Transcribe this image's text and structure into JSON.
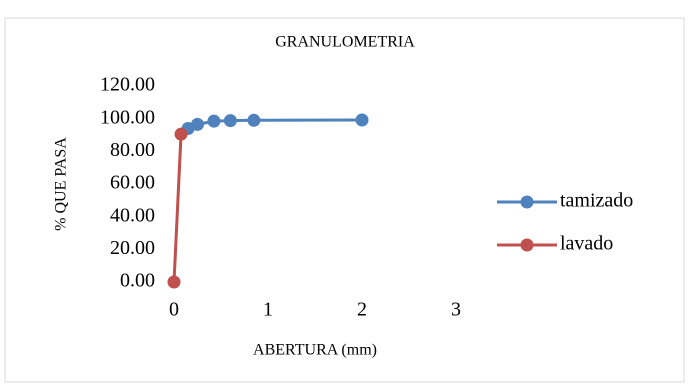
{
  "chart_data": {
    "type": "scatter-line",
    "title": "GRANULOMETRIA",
    "x_label": "ABERTURA (mm)",
    "y_label": "% QUE PASA",
    "xlim": [
      0,
      3
    ],
    "xticks": [
      0,
      1,
      2,
      3
    ],
    "ylim": [
      0,
      120
    ],
    "yticks": [
      {
        "value": 0,
        "label": "0.00"
      },
      {
        "value": 20,
        "label": "20.00"
      },
      {
        "value": 40,
        "label": "40.00"
      },
      {
        "value": 60,
        "label": "60.00"
      },
      {
        "value": 80,
        "label": "80.00"
      },
      {
        "value": 100,
        "label": "100.00"
      },
      {
        "value": 120,
        "label": "120.00"
      }
    ],
    "grid": false,
    "legend": "right",
    "series": [
      {
        "name": "tamizado",
        "color": "#4f81bd",
        "x": [
          0.15,
          0.25,
          0.425,
          0.6,
          0.85,
          2.0
        ],
        "values": [
          94,
          96.5,
          98.5,
          98.8,
          99,
          99.2
        ]
      },
      {
        "name": "lavado",
        "color": "#c0504d",
        "x": [
          0,
          0.075
        ],
        "values": [
          0,
          90.5
        ]
      }
    ]
  }
}
